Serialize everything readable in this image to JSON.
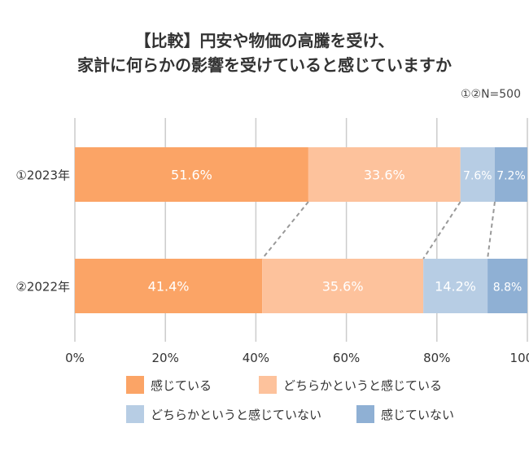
{
  "chart_data": {
    "type": "bar",
    "orientation": "horizontal",
    "stacked": true,
    "title": [
      "【比較】円安や物価の高騰を受け、",
      "家計に何らかの影響を受けていると感じていますか"
    ],
    "note": "①②N=500",
    "categories": [
      "①2023年",
      "②2022年"
    ],
    "series": [
      {
        "name": "感じている",
        "values": [
          51.6,
          41.4
        ],
        "color": "#FBA466"
      },
      {
        "name": "どちらかというと感じている",
        "values": [
          33.6,
          35.6
        ],
        "color": "#FDC29C"
      },
      {
        "name": "どちらかというと感じていない",
        "values": [
          7.6,
          14.2
        ],
        "color": "#B7CDE4"
      },
      {
        "name": "感じていない",
        "values": [
          7.2,
          8.8
        ],
        "color": "#8FB0D4"
      }
    ],
    "value_suffix": "%",
    "xlim": [
      0,
      100
    ],
    "xticks": [
      "0%",
      "20%",
      "40%",
      "60%",
      "80%",
      "100%"
    ],
    "grid": true,
    "legend": "bottom"
  }
}
